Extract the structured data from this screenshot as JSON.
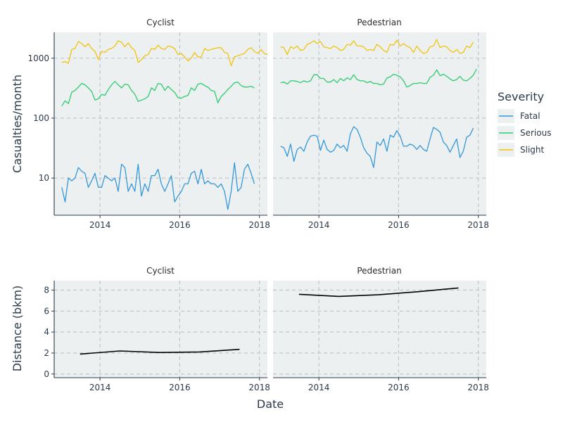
{
  "colors": {
    "Fatal": "#3498db",
    "Serious": "#2ecc71",
    "Slight": "#f1c40f",
    "Distance": "#000000",
    "panel": "#ecf0f1",
    "grid": "#bdc3c7"
  },
  "legend": {
    "title": "Severity",
    "position": "right",
    "items": [
      "Fatal",
      "Serious",
      "Slight"
    ]
  },
  "labels": {
    "casualties_ylabel": "Casualties/month",
    "distance_ylabel": "Distance (bkm)",
    "xlabel": "Date"
  },
  "chart_data": [
    {
      "type": "line",
      "facet": "Cyclist",
      "ylabel": "Casualties/month",
      "yscale": "log",
      "ylim": [
        2.4,
        2700
      ],
      "yticks": [
        10,
        100,
        1000
      ],
      "xticks": [
        2014,
        2016,
        2018
      ],
      "xlim": [
        2012.85,
        2018.2
      ],
      "grid": true,
      "x_start": 2013.04,
      "x_step": 0.0833333,
      "series": [
        {
          "name": "Slight",
          "values": [
            850,
            880,
            820,
            1400,
            1450,
            1900,
            1750,
            1550,
            1750,
            1450,
            1300,
            950,
            1300,
            1250,
            1400,
            1450,
            1600,
            1950,
            1850,
            1550,
            1800,
            1500,
            1350,
            850,
            950,
            1100,
            1150,
            1450,
            1400,
            1650,
            1450,
            1400,
            1600,
            1550,
            1450,
            1150,
            1200,
            1050,
            900,
            1000,
            1250,
            1050,
            1050,
            1450,
            1350,
            1400,
            1450,
            1500,
            1500,
            1250,
            1200,
            750,
            1050,
            1100,
            1150,
            1200,
            1400,
            1500,
            1300,
            1200,
            1400,
            1200,
            1150
          ]
        },
        {
          "name": "Serious",
          "values": [
            160,
            195,
            175,
            270,
            290,
            330,
            380,
            360,
            320,
            280,
            200,
            210,
            250,
            240,
            300,
            360,
            410,
            360,
            320,
            370,
            360,
            290,
            250,
            190,
            200,
            210,
            230,
            320,
            290,
            380,
            370,
            290,
            340,
            300,
            270,
            220,
            215,
            230,
            240,
            320,
            290,
            370,
            380,
            350,
            330,
            290,
            280,
            180,
            230,
            260,
            300,
            340,
            390,
            400,
            350,
            330,
            330,
            340,
            320
          ]
        },
        {
          "name": "Fatal",
          "values": [
            7,
            4,
            10,
            9,
            10,
            15,
            13,
            12,
            7,
            9,
            12,
            7,
            7,
            11,
            10,
            9,
            10,
            6,
            17,
            15,
            6,
            8,
            6,
            17,
            5,
            8,
            6,
            11,
            11,
            14,
            8,
            6,
            8,
            11,
            4,
            5,
            6,
            8,
            8,
            12,
            13,
            8,
            14,
            8,
            9,
            8,
            8,
            7,
            8,
            6,
            3,
            6,
            18,
            6,
            7,
            14,
            17,
            12,
            8
          ]
        }
      ]
    },
    {
      "type": "line",
      "facet": "Pedestrian",
      "ylabel": "Casualties/month",
      "yscale": "log",
      "ylim": [
        2.4,
        2700
      ],
      "yticks": [
        10,
        100,
        1000
      ],
      "xticks": [
        2014,
        2016,
        2018
      ],
      "xlim": [
        2012.85,
        2018.2
      ],
      "grid": true,
      "x_start": 2013.04,
      "x_step": 0.0833333,
      "series": [
        {
          "name": "Slight",
          "values": [
            1550,
            1500,
            1150,
            1550,
            1450,
            1600,
            1350,
            1400,
            1700,
            1800,
            1950,
            1750,
            1900,
            1550,
            1500,
            1450,
            1600,
            1500,
            1350,
            1400,
            1700,
            1650,
            1950,
            1600,
            1600,
            1550,
            1350,
            1400,
            1350,
            1700,
            1550,
            1350,
            1250,
            1700,
            1650,
            2000,
            1600,
            1750,
            1600,
            1500,
            1250,
            1600,
            1350,
            1200,
            1250,
            1550,
            1600,
            2050,
            1500,
            1600,
            1550,
            1350,
            1250,
            1400,
            1200,
            1250,
            1600,
            1500,
            1850
          ]
        },
        {
          "name": "Serious",
          "values": [
            390,
            400,
            370,
            420,
            420,
            410,
            390,
            420,
            400,
            420,
            530,
            530,
            460,
            460,
            400,
            400,
            440,
            390,
            460,
            420,
            470,
            440,
            530,
            440,
            420,
            420,
            390,
            410,
            380,
            380,
            360,
            370,
            470,
            490,
            540,
            520,
            490,
            420,
            330,
            350,
            380,
            380,
            390,
            380,
            380,
            480,
            520,
            640,
            510,
            540,
            500,
            450,
            420,
            440,
            500,
            430,
            420,
            460,
            520,
            660
          ]
        },
        {
          "name": "Fatal",
          "values": [
            34,
            32,
            23,
            37,
            19,
            30,
            33,
            28,
            40,
            50,
            52,
            50,
            29,
            43,
            30,
            27,
            29,
            37,
            32,
            35,
            28,
            55,
            72,
            65,
            48,
            32,
            26,
            23,
            15,
            40,
            35,
            45,
            28,
            52,
            48,
            62,
            50,
            34,
            34,
            37,
            35,
            30,
            35,
            30,
            28,
            45,
            70,
            65,
            58,
            40,
            35,
            27,
            35,
            45,
            22,
            28,
            48,
            52,
            68
          ]
        }
      ]
    },
    {
      "type": "line",
      "facet": "Cyclist",
      "ylabel": "Distance (bkm)",
      "ylim": [
        -0.35,
        8.9
      ],
      "yticks": [
        0,
        2,
        4,
        6,
        8
      ],
      "xticks": [
        2014,
        2016,
        2018
      ],
      "xlim": [
        2012.85,
        2018.2
      ],
      "grid": true,
      "series": [
        {
          "name": "Distance",
          "x": [
            2013.5,
            2014.5,
            2015.5,
            2016.5,
            2017.5
          ],
          "values": [
            1.9,
            2.2,
            2.05,
            2.1,
            2.35
          ]
        }
      ]
    },
    {
      "type": "line",
      "facet": "Pedestrian",
      "ylabel": "Distance (bkm)",
      "ylim": [
        -0.35,
        8.9
      ],
      "yticks": [
        0,
        2,
        4,
        6,
        8
      ],
      "xticks": [
        2014,
        2016,
        2018
      ],
      "xlim": [
        2012.85,
        2018.2
      ],
      "grid": true,
      "series": [
        {
          "name": "Distance",
          "x": [
            2013.5,
            2014.5,
            2015.5,
            2016.5,
            2017.5
          ],
          "values": [
            7.6,
            7.4,
            7.55,
            7.85,
            8.2
          ]
        }
      ]
    }
  ]
}
